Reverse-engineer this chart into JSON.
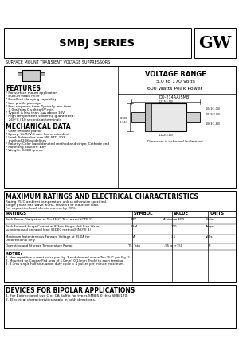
{
  "title": "SMBJ SERIES",
  "subtitle": "SURFACE MOUNT TRANSIENT VOLTAGE SUPPRESSORS",
  "logo": "GW",
  "voltage_range_title": "VOLTAGE RANGE",
  "voltage_range": "5.0 to 170 Volts",
  "power": "600 Watts Peak Power",
  "features_title": "FEATURES",
  "features": [
    "* For surface mount application",
    "* Built-in strain relief",
    "* Excellent clamping capability",
    "* Low profile package",
    "* Fast response time: Typically less than",
    "   1.0ps from 0 volt to 6V min.",
    "* Typical is less than 1μA above 10V",
    "* High temperature soldering guaranteed:",
    "   260°C / 10 seconds at terminals"
  ],
  "mech_title": "MECHANICAL DATA",
  "mech": [
    "* Case: Molded plastic",
    "* Epoxy: UL 94V-0 rate flame retardant",
    "* Lead: Solderable, see MIL-STD-202",
    "   method 208 guidelines",
    "* Polarity: Color band denoted method and stripe: Cathode end",
    "* Mounting position: Any",
    "* Weight: 0.060 grams"
  ],
  "max_ratings_title": "MAXIMUM RATINGS AND ELECTRICAL CHARACTERISTICS",
  "ratings_note_lines": [
    "Rating 25°C ambient temperature unless otherwise specified.",
    "Single phase half wave, 60Hz, resistive or inductive load.",
    "For capacitive load, derate current by 20%."
  ],
  "table_headers": [
    "RATINGS",
    "SYMBOL",
    "VALUE",
    "UNITS"
  ],
  "table_rows": [
    [
      "Peak Power Dissipation at Ta=25°C, Ts=1msec(NOTE 1)",
      "PPK",
      "Minimum 600",
      "Watts"
    ],
    [
      "Peak Forward Surge Current at 8.3ms Single Half Sine-Wave\nsuperimposed on rated load (JEDEC method) (NOTE 3)",
      "IFSM",
      "100",
      "Amps"
    ],
    [
      "Maximum Instantaneous Forward Voltage at 35.0A for\nUnidirectional only",
      "VF",
      "3.5",
      "Volts"
    ],
    [
      "Operating and Storage Temperature Range",
      "TL, Tstg",
      "-55 to +150",
      "°C"
    ]
  ],
  "notes_title": "NOTES:",
  "notes": [
    "1. Non-repetitive current pulse per Fig. 3 and derated above Ta=25°C per Fig. 2.",
    "2. Mounted on Copper Pad area of 5.0mm² 0.13mm Thick) to each terminal.",
    "3. 8.3ms single half sine-wave, duty cycle = 4 pulses per minute maximum."
  ],
  "bipolar_title": "DEVICES FOR BIPOLAR APPLICATIONS",
  "bipolar": [
    "1. For Bidirectional use C or CA Suffix for types SMBJ5.0 thru SMBJ170.",
    "2. Electrical characteristics apply in both directions."
  ],
  "pkg_label": "DO-214AA(SMB)",
  "dim_note": "Dimensions in inches and (millimeters)",
  "bg_color": "#ffffff"
}
